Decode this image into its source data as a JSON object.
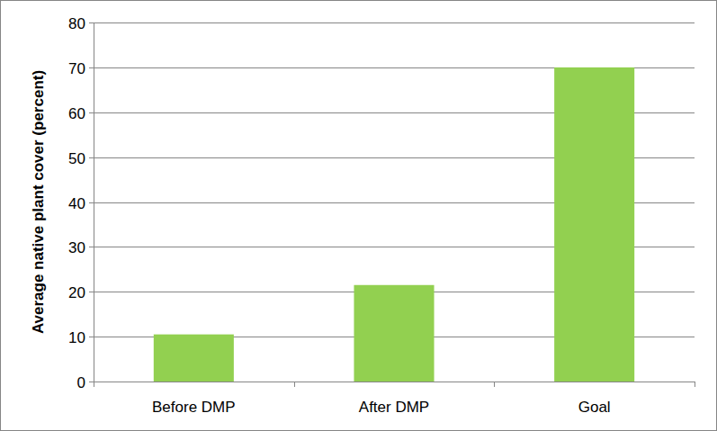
{
  "chart_data": {
    "type": "bar",
    "y_label": "Average native plant cover (percent)",
    "categories": [
      "Before DMP",
      "After DMP",
      "Goal"
    ],
    "values": [
      10.5,
      21.5,
      70
    ],
    "color": "#92d050",
    "ylim": [
      0,
      80
    ],
    "yticks": [
      0,
      10,
      20,
      30,
      40,
      50,
      60,
      70,
      80
    ],
    "grid": true
  }
}
